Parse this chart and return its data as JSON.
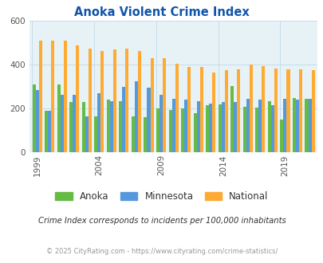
{
  "title": "Anoka Violent Crime Index",
  "subtitle": "Crime Index corresponds to incidents per 100,000 inhabitants",
  "footer": "© 2025 CityRating.com - https://www.cityrating.com/crime-statistics/",
  "years": [
    1999,
    2000,
    2001,
    2002,
    2003,
    2004,
    2005,
    2006,
    2007,
    2008,
    2009,
    2010,
    2011,
    2012,
    2013,
    2014,
    2015,
    2016,
    2017,
    2018,
    2019,
    2020,
    2021
  ],
  "anoka": [
    310,
    190,
    310,
    230,
    230,
    165,
    240,
    235,
    165,
    160,
    200,
    195,
    200,
    180,
    215,
    220,
    305,
    210,
    205,
    235,
    150,
    250,
    245
  ],
  "minnesota": [
    285,
    190,
    265,
    265,
    165,
    270,
    235,
    300,
    325,
    295,
    265,
    245,
    240,
    235,
    225,
    230,
    230,
    245,
    240,
    215,
    245,
    240,
    245
  ],
  "national": [
    510,
    510,
    510,
    490,
    475,
    465,
    470,
    475,
    465,
    430,
    430,
    405,
    390,
    390,
    365,
    375,
    380,
    400,
    395,
    385,
    380,
    380,
    375
  ],
  "bar_colors": [
    "#66bb44",
    "#5599dd",
    "#ffaa33"
  ],
  "legend_labels": [
    "Anoka",
    "Minnesota",
    "National"
  ],
  "ylim": [
    0,
    600
  ],
  "yticks": [
    0,
    200,
    400,
    600
  ],
  "bg_color": "#e6f2f6",
  "title_color": "#1155aa",
  "subtitle_color": "#333333",
  "footer_color": "#999999",
  "grid_color": "#c8dde8",
  "bar_width": 0.26,
  "xlabel_years": [
    1999,
    2004,
    2009,
    2014,
    2019
  ]
}
